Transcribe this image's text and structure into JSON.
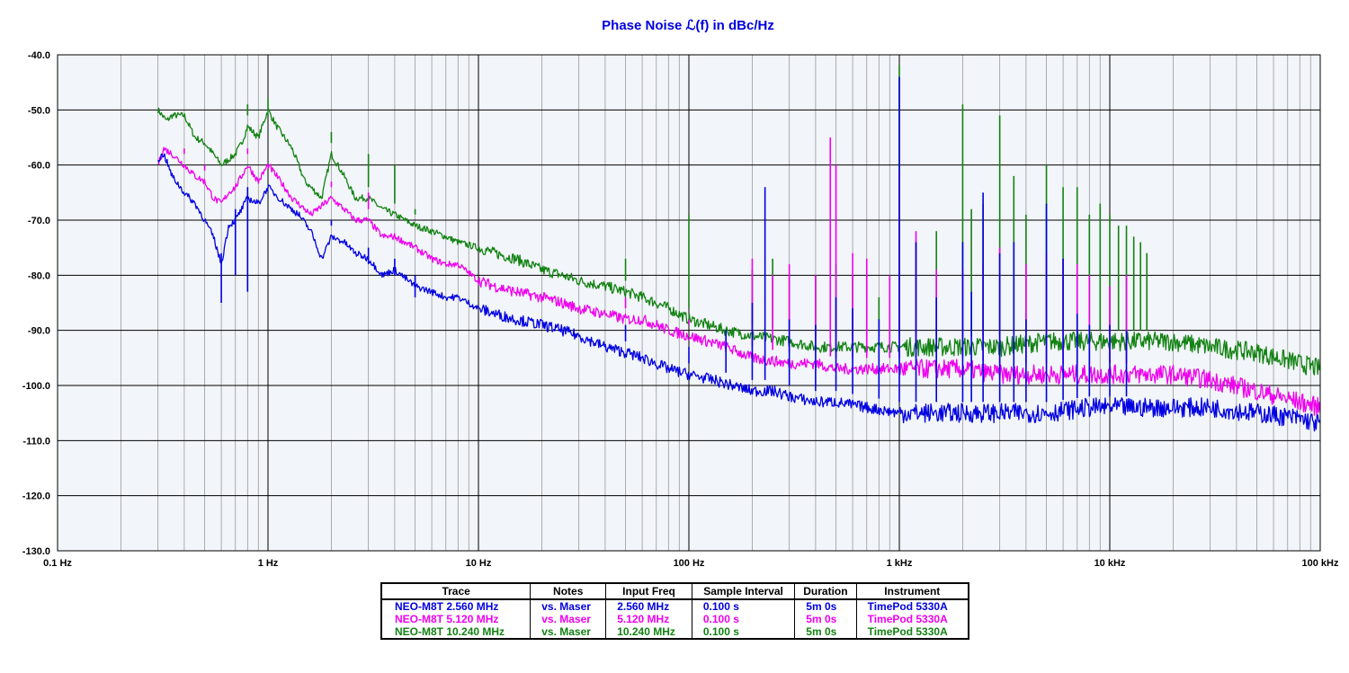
{
  "chart_data": {
    "type": "line",
    "title": "Phase Noise ℒ(f) in dBc/Hz",
    "title_color": "#0000e0",
    "background": "#f2f5f9",
    "grid": true,
    "x_scale": "log",
    "xlim_hz": [
      0.1,
      100000
    ],
    "ylim": [
      -130,
      -40
    ],
    "y_ticks": [
      "-40.0",
      "-50.0",
      "-60.0",
      "-70.0",
      "-80.0",
      "-90.0",
      "-100.0",
      "-110.0",
      "-120.0",
      "-130.0"
    ],
    "x_ticks": [
      "0.1 Hz",
      "1 Hz",
      "10 Hz",
      "100 Hz",
      "1 kHz",
      "10 kHz",
      "100 kHz"
    ],
    "series": [
      {
        "name": "NEO-M8T 2.560 MHz",
        "color": "#0000e0",
        "points": [
          [
            0.3,
            -59
          ],
          [
            0.32,
            -58
          ],
          [
            0.35,
            -62
          ],
          [
            0.4,
            -65
          ],
          [
            0.45,
            -67
          ],
          [
            0.5,
            -70
          ],
          [
            0.55,
            -73
          ],
          [
            0.6,
            -78
          ],
          [
            0.65,
            -71
          ],
          [
            0.7,
            -70
          ],
          [
            0.75,
            -68
          ],
          [
            0.8,
            -66
          ],
          [
            0.9,
            -67
          ],
          [
            1,
            -64
          ],
          [
            1.2,
            -67
          ],
          [
            1.4,
            -69
          ],
          [
            1.6,
            -72
          ],
          [
            1.8,
            -77
          ],
          [
            2,
            -73
          ],
          [
            2.3,
            -74
          ],
          [
            2.6,
            -76
          ],
          [
            3,
            -77
          ],
          [
            3.5,
            -80
          ],
          [
            4,
            -79
          ],
          [
            5,
            -82
          ],
          [
            6,
            -83
          ],
          [
            7,
            -84
          ],
          [
            8,
            -84
          ],
          [
            10,
            -86
          ],
          [
            12,
            -87
          ],
          [
            15,
            -88
          ],
          [
            20,
            -89
          ],
          [
            25,
            -90
          ],
          [
            30,
            -91
          ],
          [
            40,
            -93
          ],
          [
            50,
            -94
          ],
          [
            60,
            -95
          ],
          [
            70,
            -96
          ],
          [
            80,
            -97
          ],
          [
            100,
            -98
          ],
          [
            130,
            -99
          ],
          [
            160,
            -100
          ],
          [
            200,
            -101
          ],
          [
            250,
            -101
          ],
          [
            300,
            -102
          ],
          [
            400,
            -103
          ],
          [
            500,
            -103
          ],
          [
            700,
            -104
          ],
          [
            1000,
            -105
          ],
          [
            1500,
            -105
          ],
          [
            2000,
            -105
          ],
          [
            3000,
            -105
          ],
          [
            5000,
            -105
          ],
          [
            8000,
            -104
          ],
          [
            10000,
            -104
          ],
          [
            15000,
            -104
          ],
          [
            20000,
            -104
          ],
          [
            30000,
            -104
          ],
          [
            50000,
            -105
          ],
          [
            80000,
            -106
          ],
          [
            100000,
            -107
          ]
        ],
        "spurs": [
          [
            0.6,
            -85
          ],
          [
            0.7,
            -80
          ],
          [
            0.8,
            -83
          ],
          [
            2,
            -70
          ],
          [
            3,
            -78
          ],
          [
            4,
            -80
          ],
          [
            5,
            -84
          ],
          [
            50,
            -89
          ],
          [
            100,
            -93
          ],
          [
            150,
            -90
          ],
          [
            200,
            -85
          ],
          [
            230,
            -64
          ],
          [
            300,
            -88
          ],
          [
            400,
            -89
          ],
          [
            500,
            -84
          ],
          [
            600,
            -86
          ],
          [
            800,
            -88
          ],
          [
            1000,
            -44
          ],
          [
            1200,
            -74
          ],
          [
            1500,
            -84
          ],
          [
            2000,
            -74
          ],
          [
            2200,
            -83
          ],
          [
            2500,
            -65
          ],
          [
            3000,
            -76
          ],
          [
            3500,
            -74
          ],
          [
            4000,
            -88
          ],
          [
            5000,
            -67
          ],
          [
            6000,
            -77
          ],
          [
            7000,
            -87
          ],
          [
            8000,
            -89
          ],
          [
            10000,
            -89
          ],
          [
            12000,
            -90
          ]
        ]
      },
      {
        "name": "NEO-M8T 5.120 MHz",
        "color": "#ee00ee",
        "points": [
          [
            0.3,
            -60
          ],
          [
            0.32,
            -57
          ],
          [
            0.35,
            -58
          ],
          [
            0.4,
            -60
          ],
          [
            0.45,
            -62
          ],
          [
            0.5,
            -63
          ],
          [
            0.55,
            -66
          ],
          [
            0.6,
            -67
          ],
          [
            0.65,
            -65
          ],
          [
            0.7,
            -64
          ],
          [
            0.75,
            -62
          ],
          [
            0.8,
            -60
          ],
          [
            0.9,
            -63
          ],
          [
            1,
            -60
          ],
          [
            1.1,
            -62
          ],
          [
            1.3,
            -66
          ],
          [
            1.6,
            -69
          ],
          [
            2,
            -66
          ],
          [
            2.3,
            -68
          ],
          [
            2.6,
            -70
          ],
          [
            3,
            -70
          ],
          [
            3.5,
            -73
          ],
          [
            4,
            -73
          ],
          [
            5,
            -75
          ],
          [
            6,
            -77
          ],
          [
            7,
            -78
          ],
          [
            8,
            -78
          ],
          [
            10,
            -81
          ],
          [
            12,
            -82
          ],
          [
            15,
            -83
          ],
          [
            20,
            -84
          ],
          [
            25,
            -85
          ],
          [
            30,
            -86
          ],
          [
            40,
            -87
          ],
          [
            50,
            -88
          ],
          [
            60,
            -88
          ],
          [
            70,
            -89
          ],
          [
            80,
            -90
          ],
          [
            100,
            -91
          ],
          [
            150,
            -93
          ],
          [
            200,
            -95
          ],
          [
            300,
            -96
          ],
          [
            400,
            -96
          ],
          [
            500,
            -97
          ],
          [
            700,
            -97
          ],
          [
            1000,
            -97
          ],
          [
            1500,
            -97
          ],
          [
            2000,
            -97
          ],
          [
            3000,
            -98
          ],
          [
            5000,
            -98
          ],
          [
            8000,
            -98
          ],
          [
            10000,
            -98
          ],
          [
            15000,
            -98
          ],
          [
            20000,
            -98
          ],
          [
            30000,
            -99
          ],
          [
            50000,
            -101
          ],
          [
            80000,
            -103
          ],
          [
            100000,
            -104
          ]
        ],
        "spurs": [
          [
            0.4,
            -57
          ],
          [
            0.5,
            -60
          ],
          [
            0.8,
            -57
          ],
          [
            1,
            -58
          ],
          [
            2,
            -63
          ],
          [
            3,
            -65
          ],
          [
            50,
            -84
          ],
          [
            100,
            -88
          ],
          [
            200,
            -77
          ],
          [
            250,
            -80
          ],
          [
            300,
            -78
          ],
          [
            400,
            -80
          ],
          [
            470,
            -55
          ],
          [
            500,
            -60
          ],
          [
            600,
            -76
          ],
          [
            700,
            -77
          ],
          [
            900,
            -80
          ],
          [
            1000,
            -61
          ],
          [
            1200,
            -72
          ],
          [
            1500,
            -79
          ],
          [
            2000,
            -79
          ],
          [
            2500,
            -78
          ],
          [
            3000,
            -75
          ],
          [
            4000,
            -78
          ],
          [
            5000,
            -76
          ],
          [
            6000,
            -77
          ],
          [
            7000,
            -78
          ],
          [
            8000,
            -80
          ],
          [
            10000,
            -82
          ],
          [
            12000,
            -80
          ]
        ]
      },
      {
        "name": "NEO-M8T 10.240 MHz",
        "color": "#128212",
        "points": [
          [
            0.3,
            -50
          ],
          [
            0.33,
            -52
          ],
          [
            0.35,
            -51
          ],
          [
            0.4,
            -51
          ],
          [
            0.45,
            -55
          ],
          [
            0.5,
            -56
          ],
          [
            0.55,
            -58
          ],
          [
            0.6,
            -60
          ],
          [
            0.65,
            -59
          ],
          [
            0.7,
            -58
          ],
          [
            0.75,
            -56
          ],
          [
            0.8,
            -53
          ],
          [
            0.9,
            -55
          ],
          [
            1,
            -50
          ],
          [
            1.1,
            -53
          ],
          [
            1.3,
            -57
          ],
          [
            1.5,
            -63
          ],
          [
            1.8,
            -66
          ],
          [
            2,
            -58
          ],
          [
            2.3,
            -62
          ],
          [
            2.6,
            -66
          ],
          [
            3,
            -66
          ],
          [
            3.5,
            -68
          ],
          [
            4,
            -69
          ],
          [
            5,
            -71
          ],
          [
            6,
            -72
          ],
          [
            7,
            -73
          ],
          [
            8,
            -74
          ],
          [
            10,
            -75
          ],
          [
            12,
            -76
          ],
          [
            15,
            -77
          ],
          [
            20,
            -79
          ],
          [
            25,
            -80
          ],
          [
            30,
            -81
          ],
          [
            40,
            -82
          ],
          [
            50,
            -83
          ],
          [
            60,
            -84
          ],
          [
            70,
            -85
          ],
          [
            80,
            -86
          ],
          [
            100,
            -88
          ],
          [
            150,
            -90
          ],
          [
            200,
            -91
          ],
          [
            300,
            -92
          ],
          [
            400,
            -93
          ],
          [
            500,
            -93
          ],
          [
            700,
            -93
          ],
          [
            1000,
            -93
          ],
          [
            2000,
            -93
          ],
          [
            3000,
            -93
          ],
          [
            5000,
            -92
          ],
          [
            8000,
            -92
          ],
          [
            10000,
            -92
          ],
          [
            15000,
            -92
          ],
          [
            20000,
            -92
          ],
          [
            30000,
            -93
          ],
          [
            50000,
            -94
          ],
          [
            80000,
            -96
          ],
          [
            100000,
            -97
          ]
        ],
        "spurs": [
          [
            0.8,
            -49
          ],
          [
            1,
            -50
          ],
          [
            2,
            -54
          ],
          [
            3,
            -58
          ],
          [
            4,
            -60
          ],
          [
            5,
            -68
          ],
          [
            50,
            -77
          ],
          [
            100,
            -69
          ],
          [
            200,
            -79
          ],
          [
            250,
            -77
          ],
          [
            300,
            -80
          ],
          [
            400,
            -80
          ],
          [
            500,
            -78
          ],
          [
            600,
            -80
          ],
          [
            700,
            -80
          ],
          [
            800,
            -84
          ],
          [
            1000,
            -42
          ],
          [
            1200,
            -74
          ],
          [
            1500,
            -72
          ],
          [
            2000,
            -49
          ],
          [
            2200,
            -68
          ],
          [
            2500,
            -67
          ],
          [
            3000,
            -51
          ],
          [
            3500,
            -62
          ],
          [
            4000,
            -69
          ],
          [
            5000,
            -60
          ],
          [
            6000,
            -64
          ],
          [
            7000,
            -64
          ],
          [
            8000,
            -69
          ],
          [
            9000,
            -67
          ],
          [
            10000,
            -69
          ],
          [
            11000,
            -71
          ],
          [
            12000,
            -71
          ],
          [
            13000,
            -73
          ],
          [
            14000,
            -74
          ],
          [
            15000,
            -76
          ]
        ]
      }
    ]
  },
  "legend_table": {
    "headers": [
      "Trace",
      "Notes",
      "Input Freq",
      "Sample Interval",
      "Duration",
      "Instrument"
    ],
    "rows": [
      {
        "color": "#0000e0",
        "cells": [
          "NEO-M8T 2.560 MHz",
          "vs. Maser",
          "2.560 MHz",
          "0.100 s",
          "5m 0s",
          "TimePod 5330A"
        ]
      },
      {
        "color": "#ee00ee",
        "cells": [
          "NEO-M8T 5.120 MHz",
          "vs. Maser",
          "5.120 MHz",
          "0.100 s",
          "5m 0s",
          "TimePod 5330A"
        ]
      },
      {
        "color": "#128212",
        "cells": [
          "NEO-M8T 10.240 MHz",
          "vs. Maser",
          "10.240 MHz",
          "0.100 s",
          "5m 0s",
          "TimePod 5330A"
        ]
      }
    ]
  }
}
